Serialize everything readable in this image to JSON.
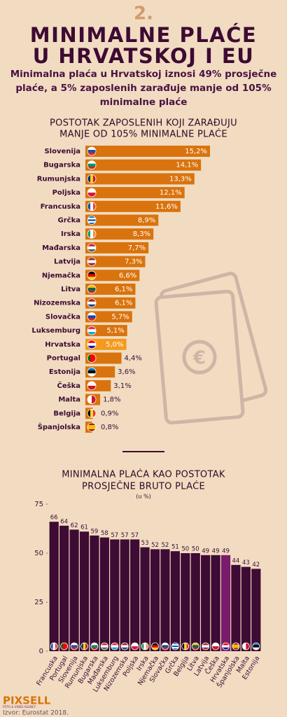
{
  "header": {
    "number": "2.",
    "title": [
      "MINIMALNE PLAĆE",
      "U HRVATSKOJ I EU"
    ],
    "subtitle": [
      "Minimalna plaća u Hrvatskoj iznosi 49% prosječne",
      "plaće, a 5% zaposlenih zarađuje manje od 105%",
      "minimalne plaće"
    ]
  },
  "chart_data": [
    {
      "type": "bar",
      "orientation": "horizontal",
      "title": [
        "POSTOTAK ZAPOSLENIH KOJI ZARAĐUJU",
        "MANJE OD 105% MINIMALNE PLAĆE"
      ],
      "categories": [
        "Slovenija",
        "Bugarska",
        "Rumunjska",
        "Poljska",
        "Francuska",
        "Grčka",
        "Irska",
        "Mađarska",
        "Latvija",
        "Njemačka",
        "Litva",
        "Nizozemska",
        "Slovačka",
        "Luksemburg",
        "Hrvatska",
        "Portugal",
        "Estonija",
        "Češka",
        "Malta",
        "Belgija",
        "Španjolska"
      ],
      "values": [
        15.2,
        14.1,
        13.3,
        12.1,
        11.6,
        8.9,
        8.3,
        7.7,
        7.3,
        6.6,
        6.1,
        6.1,
        5.7,
        5.1,
        5.0,
        4.4,
        3.6,
        3.1,
        1.8,
        0.9,
        0.8
      ],
      "value_labels": [
        "15,2%",
        "14,1%",
        "13,3%",
        "12,1%",
        "11,6%",
        "8,9%",
        "8,3%",
        "7,7%",
        "7,3%",
        "6,6%",
        "6,1%",
        "6,1%",
        "5,7%",
        "5,1%",
        "5,0%",
        "4,4%",
        "3,6%",
        "3,1%",
        "1,8%",
        "0,9%",
        "0,8%"
      ],
      "colors": [
        "#d9730d",
        "#d9730d",
        "#d9730d",
        "#d9730d",
        "#d9730d",
        "#d9730d",
        "#d9730d",
        "#d9730d",
        "#d9730d",
        "#d9730d",
        "#d9730d",
        "#d9730d",
        "#d9730d",
        "#d9730d",
        "#f59a1c",
        "#d9730d",
        "#d9730d",
        "#d9730d",
        "#d9730d",
        "#d9730d",
        "#d9730d"
      ]
    },
    {
      "type": "bar",
      "orientation": "vertical",
      "title": [
        "MINIMALNA PLAĆA KAO POSTOTAK",
        "PROSJEČNE BRUTO PLAĆE"
      ],
      "subtitle": "(u %)",
      "categories": [
        "Francuska",
        "Portugal",
        "Slovenija",
        "Rumunjska",
        "Bugarska",
        "Mađarska",
        "Luksemburg",
        "Nizozemska",
        "Poljska",
        "Irska",
        "Njemačka",
        "Slovačka",
        "Grčka",
        "Belgija",
        "Litva",
        "Latvija",
        "Češka",
        "Hrvatska",
        "Španjolska",
        "Malta",
        "Estonija"
      ],
      "values": [
        66,
        64,
        62,
        61,
        59,
        58,
        57,
        57,
        57,
        53,
        52,
        52,
        51,
        50,
        50,
        49,
        49,
        49,
        44,
        43,
        42
      ],
      "colors": [
        "#3d0b33",
        "#3d0b33",
        "#3d0b33",
        "#3d0b33",
        "#3d0b33",
        "#3d0b33",
        "#3d0b33",
        "#3d0b33",
        "#3d0b33",
        "#3d0b33",
        "#3d0b33",
        "#3d0b33",
        "#3d0b33",
        "#3d0b33",
        "#3d0b33",
        "#3d0b33",
        "#3d0b33",
        "#7a1c6b",
        "#3d0b33",
        "#3d0b33",
        "#3d0b33"
      ],
      "ylim": [
        0,
        75
      ],
      "yticks": [
        0,
        25,
        50,
        75
      ]
    }
  ],
  "footer": {
    "brand": "PIXSELL",
    "tagline": "FOTO & VIDEO AGENCY",
    "source": "Izvor: Eurostat 2018."
  }
}
